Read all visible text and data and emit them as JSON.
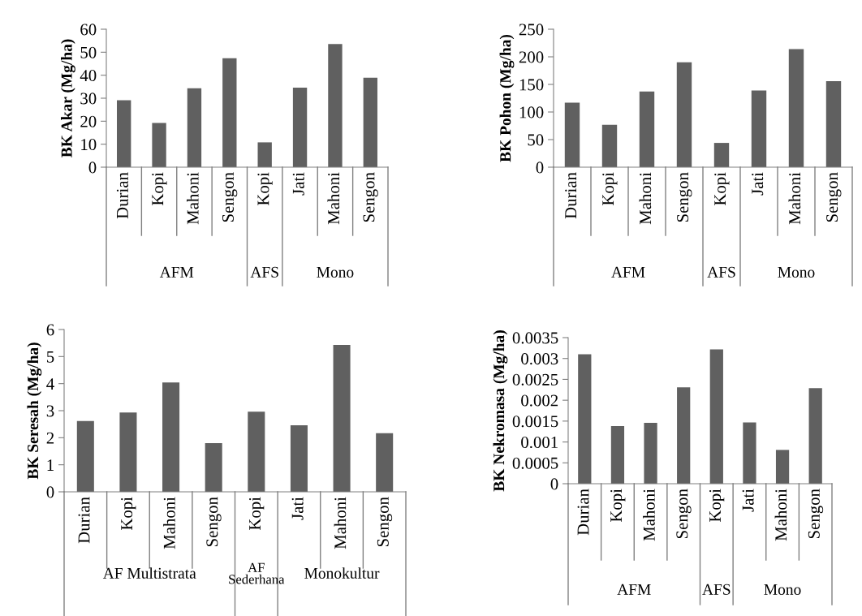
{
  "chart_data": [
    {
      "type": "bar",
      "ylabel": "BK Akar (Mg/ha)",
      "categories": [
        "Durian",
        "Kopi",
        "Mahoni",
        "Sengon",
        "Kopi",
        "Jati",
        "Mahoni",
        "Sengon"
      ],
      "values": [
        29.1,
        19.2,
        34.3,
        47.4,
        10.8,
        34.6,
        53.6,
        38.9
      ],
      "color": "#606060",
      "ylim": [
        0,
        60
      ],
      "yticks": [
        0,
        10,
        20,
        30,
        40,
        50,
        60
      ],
      "grid": false,
      "annotations": [
        "AFM",
        "AFS",
        "Mono"
      ]
    },
    {
      "type": "bar",
      "ylabel": "BK Pohon (Mg/ha)",
      "categories": [
        "Durian",
        "Kopi",
        "Mahoni",
        "Sengon",
        "Kopi",
        "Jati",
        "Mahoni",
        "Sengon"
      ],
      "values": [
        117,
        77,
        137,
        190,
        44,
        139,
        214,
        156
      ],
      "color": "#606060",
      "ylim": [
        0,
        250
      ],
      "yticks": [
        0,
        50,
        100,
        150,
        200,
        250
      ],
      "grid": false,
      "annotations": [
        "AFM",
        "AFS",
        "Mono"
      ]
    },
    {
      "type": "bar",
      "ylabel": "BK Seresah (Mg/ha)",
      "categories": [
        "Durian",
        "Kopi",
        "Mahoni",
        "Sengon",
        "Kopi",
        "Jati",
        "Mahoni",
        "Sengon"
      ],
      "values": [
        2.62,
        2.93,
        4.04,
        1.8,
        2.96,
        2.46,
        5.43,
        2.17
      ],
      "color": "#606060",
      "ylim": [
        0,
        6
      ],
      "yticks": [
        0,
        1,
        2,
        3,
        4,
        5,
        6
      ],
      "grid": false,
      "annotations": [
        "AF Multistrata",
        "AF Sederhana",
        "Monokultur"
      ]
    },
    {
      "type": "bar",
      "ylabel": "BK Nekromasa (Mg/ha)",
      "categories": [
        "Durian",
        "Kopi",
        "Mahoni",
        "Sengon",
        "Kopi",
        "Jati",
        "Mahoni",
        "Sengon"
      ],
      "values": [
        0.0031,
        0.00138,
        0.00146,
        0.00231,
        0.00322,
        0.00147,
        0.00081,
        0.00229
      ],
      "color": "#606060",
      "ylim": [
        0,
        0.0035
      ],
      "yticks": [
        0,
        0.0005,
        0.001,
        0.0015,
        0.002,
        0.0025,
        0.003,
        0.0035
      ],
      "grid": false,
      "annotations": [
        "AFM",
        "AFS",
        "Mono"
      ]
    }
  ]
}
